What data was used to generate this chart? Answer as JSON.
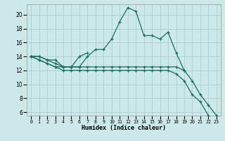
{
  "xlabel": "Humidex (Indice chaleur)",
  "background_color": "#cce8e8",
  "grid_color": "#aad0d0",
  "line_color": "#1a6b60",
  "xlim": [
    -0.5,
    23.5
  ],
  "ylim": [
    5.5,
    21.5
  ],
  "yticks": [
    6,
    8,
    10,
    12,
    14,
    16,
    18,
    20
  ],
  "xtick_labels": [
    "0",
    "1",
    "2",
    "3",
    "4",
    "5",
    "6",
    "7",
    "8",
    "9",
    "10",
    "11",
    "12",
    "13",
    "14",
    "15",
    "16",
    "17",
    "18",
    "19",
    "20",
    "21",
    "22",
    "23"
  ],
  "series": [
    [
      14.0,
      14.0,
      13.5,
      13.5,
      12.5,
      12.5,
      12.5,
      14.0,
      15.0,
      15.0,
      16.5,
      19.0,
      21.0,
      20.5,
      17.0,
      17.0,
      16.5,
      17.5,
      14.5,
      12.0,
      10.5,
      8.5,
      7.0,
      5.5
    ],
    [
      14.0,
      14.0,
      13.5,
      13.0,
      12.5,
      12.5,
      14.0,
      14.5,
      null,
      null,
      null,
      null,
      null,
      null,
      null,
      null,
      null,
      null,
      null,
      null,
      null,
      null,
      null,
      null
    ],
    [
      14.0,
      13.5,
      13.0,
      12.5,
      12.5,
      12.5,
      12.5,
      12.5,
      12.5,
      12.5,
      12.5,
      12.5,
      12.5,
      12.5,
      12.5,
      12.5,
      12.5,
      12.5,
      12.5,
      12.0,
      null,
      null,
      null,
      null
    ],
    [
      14.0,
      13.5,
      13.0,
      12.5,
      12.0,
      12.0,
      12.0,
      12.0,
      12.0,
      12.0,
      12.0,
      12.0,
      12.0,
      12.0,
      12.0,
      12.0,
      12.0,
      12.0,
      11.5,
      10.5,
      8.5,
      7.5,
      5.5,
      null
    ]
  ]
}
